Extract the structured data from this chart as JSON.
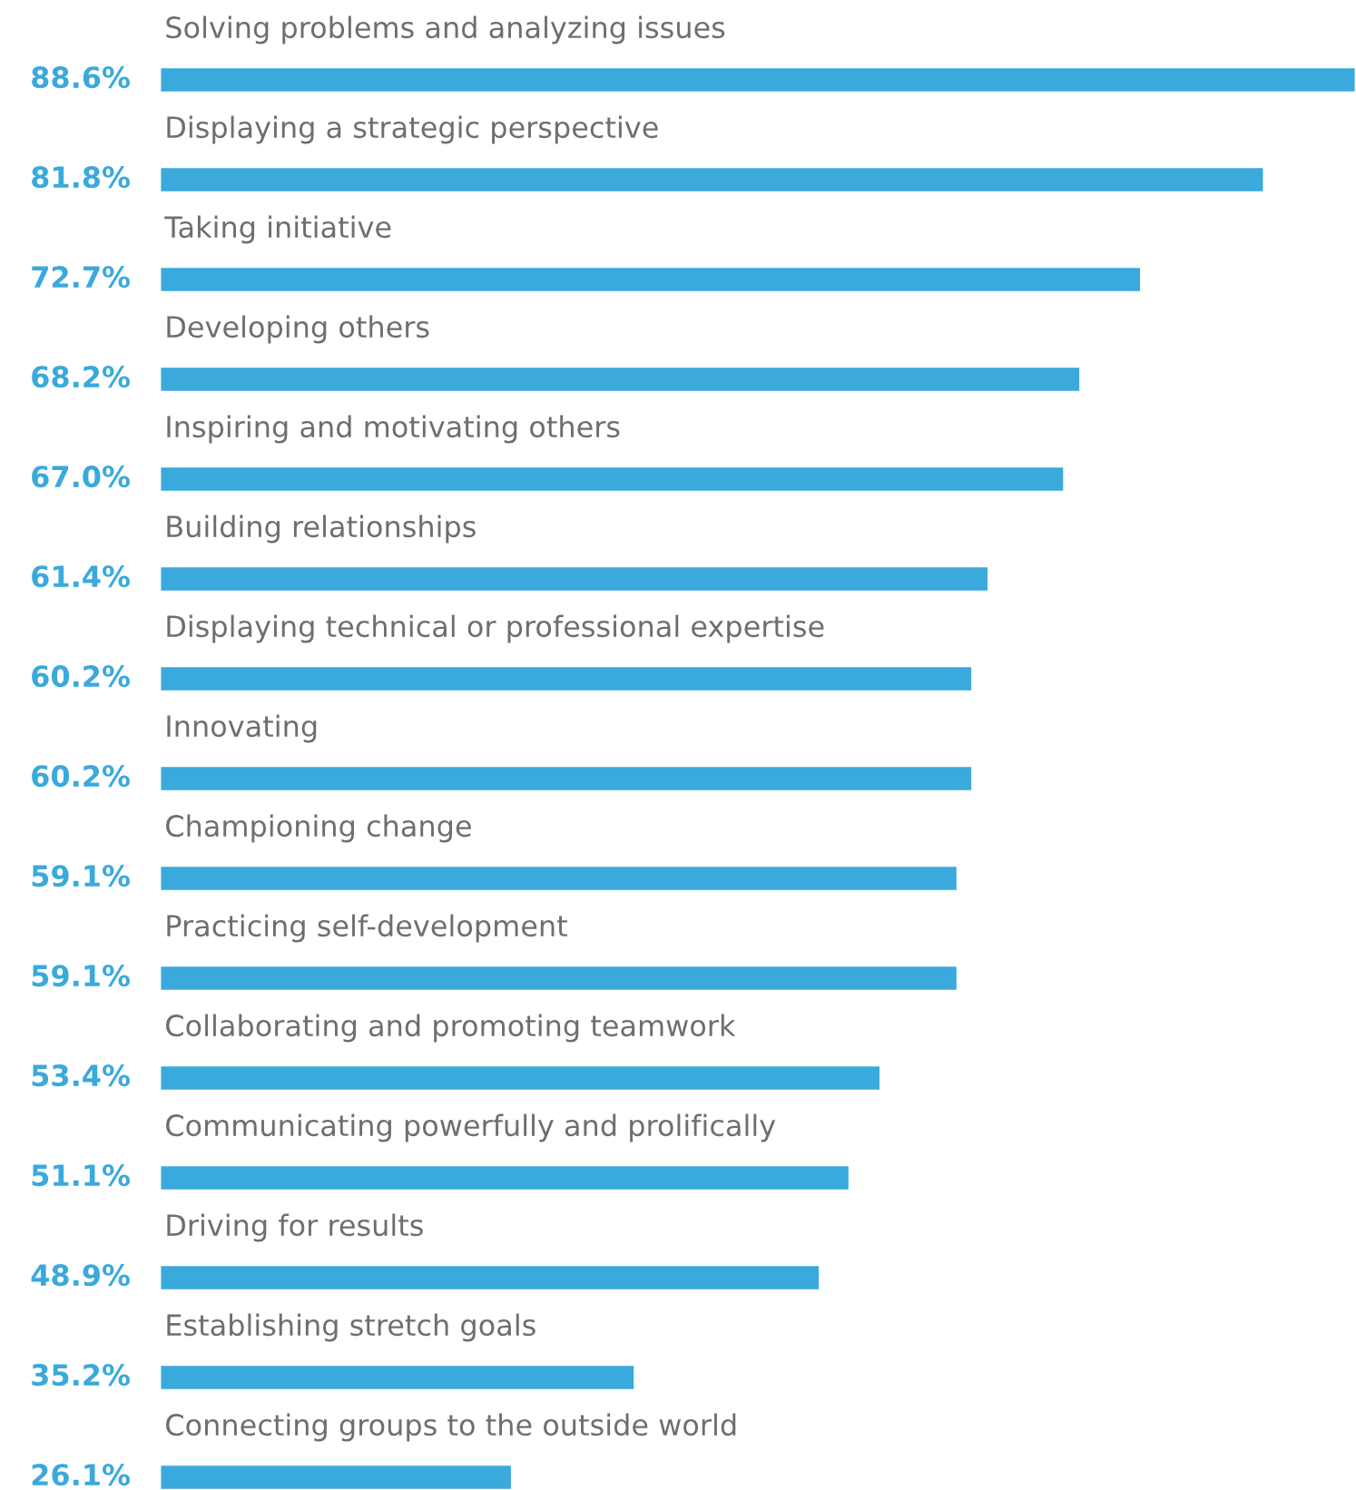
{
  "chart_data": {
    "type": "bar",
    "orientation": "horizontal",
    "categories": [
      "Solving problems and analyzing issues",
      "Displaying a strategic perspective",
      "Taking initiative",
      "Developing others",
      "Inspiring and motivating others",
      "Building relationships",
      "Displaying technical or professional expertise",
      "Innovating",
      "Championing change",
      "Practicing self-development",
      "Collaborating and promoting teamwork",
      "Communicating powerfully and prolifically",
      "Driving for results",
      "Establishing stretch goals",
      "Connecting groups to the outside world"
    ],
    "values": [
      88.6,
      81.8,
      72.7,
      68.2,
      67.0,
      61.4,
      60.2,
      60.2,
      59.1,
      59.1,
      53.4,
      51.1,
      48.9,
      35.2,
      26.1
    ],
    "value_labels": [
      "88.6%",
      "81.8%",
      "72.7%",
      "68.2%",
      "67.0%",
      "61.4%",
      "60.2%",
      "60.2%",
      "59.1%",
      "59.1%",
      "53.4%",
      "51.1%",
      "48.9%",
      "35.2%",
      "26.1%"
    ],
    "color": "#3aa9dc"
  }
}
